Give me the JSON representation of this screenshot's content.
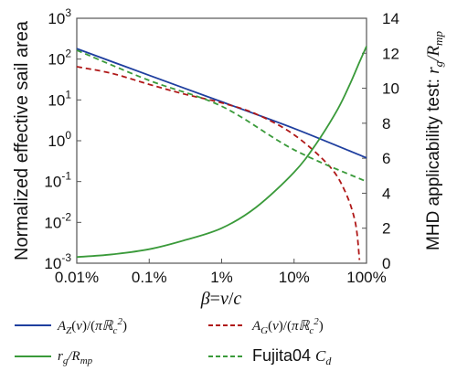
{
  "chart_data": {
    "type": "line",
    "x_scale": "log",
    "y_scale_left": "log",
    "grid": false,
    "legend_placement": "bottom",
    "xlabel": "β=v/c",
    "ylabel_left": "Normalized effective sail area",
    "ylabel_right": "MHD applicability test: r_g/R_mp",
    "xlim": [
      0.0001,
      1.0
    ],
    "ylim_left": [
      0.001,
      1000
    ],
    "ylim_right": [
      0,
      14
    ],
    "x_ticks": [
      0.0001,
      0.001,
      0.01,
      0.1,
      1.0
    ],
    "x_tick_labels": [
      "0.01%",
      "0.1%",
      "1%",
      "10%",
      "100%"
    ],
    "y_left_tick_labels": [
      {
        "base": "10",
        "exp": "3",
        "value": 1000
      },
      {
        "base": "10",
        "exp": "2",
        "value": 100
      },
      {
        "base": "10",
        "exp": "1",
        "value": 10
      },
      {
        "base": "10",
        "exp": "0",
        "value": 1
      },
      {
        "base": "10",
        "exp": "-1",
        "value": 0.1
      },
      {
        "base": "10",
        "exp": "-2",
        "value": 0.01
      },
      {
        "base": "10",
        "exp": "-3",
        "value": 0.001
      }
    ],
    "y_right_tick_labels": [
      "0",
      "2",
      "4",
      "6",
      "8",
      "10",
      "12",
      "14"
    ],
    "series": [
      {
        "name": "A_Z(v)/(πR_c^2)",
        "legend_label": "A_Z(v)/(πℝ_c^2)",
        "axis": "left",
        "color": "#1f3f9f",
        "dash": "solid",
        "x": [
          0.0001,
          0.001,
          0.01,
          0.1,
          1.0
        ],
        "y": [
          180,
          40,
          9,
          2,
          0.38
        ]
      },
      {
        "name": "A_G(v)/(πR_c^2)",
        "legend_label": "A_G(v)/(πℝ_c^2)",
        "axis": "left",
        "color": "#b01818",
        "dash": "dashed",
        "x": [
          0.0001,
          0.0003,
          0.001,
          0.003,
          0.01,
          0.03,
          0.1,
          0.3,
          0.5,
          0.7,
          0.8
        ],
        "y": [
          65,
          45,
          24,
          14,
          8.5,
          4.5,
          1.4,
          0.25,
          0.06,
          0.01,
          0.0012
        ]
      },
      {
        "name": "r_g/R_mp",
        "legend_label": "r_g/R_mp",
        "axis": "right",
        "color": "#3a9a3a",
        "dash": "solid",
        "x": [
          0.0001,
          0.0003,
          0.001,
          0.003,
          0.01,
          0.03,
          0.1,
          0.2,
          0.4,
          0.6,
          0.8,
          1.0
        ],
        "y": [
          0.35,
          0.5,
          0.8,
          1.3,
          2.0,
          3.2,
          5.2,
          6.8,
          8.8,
          10.3,
          11.5,
          12.4
        ]
      },
      {
        "name": "Fujita04 C_d",
        "legend_label_prefix": "Fujita04 ",
        "legend_label_var": "C_d",
        "axis": "left",
        "color": "#3a9a3a",
        "dash": "dashed",
        "x": [
          0.0001,
          0.001,
          0.01,
          0.1,
          1.0
        ],
        "y": [
          165,
          30,
          7,
          0.6,
          0.1
        ]
      }
    ]
  }
}
